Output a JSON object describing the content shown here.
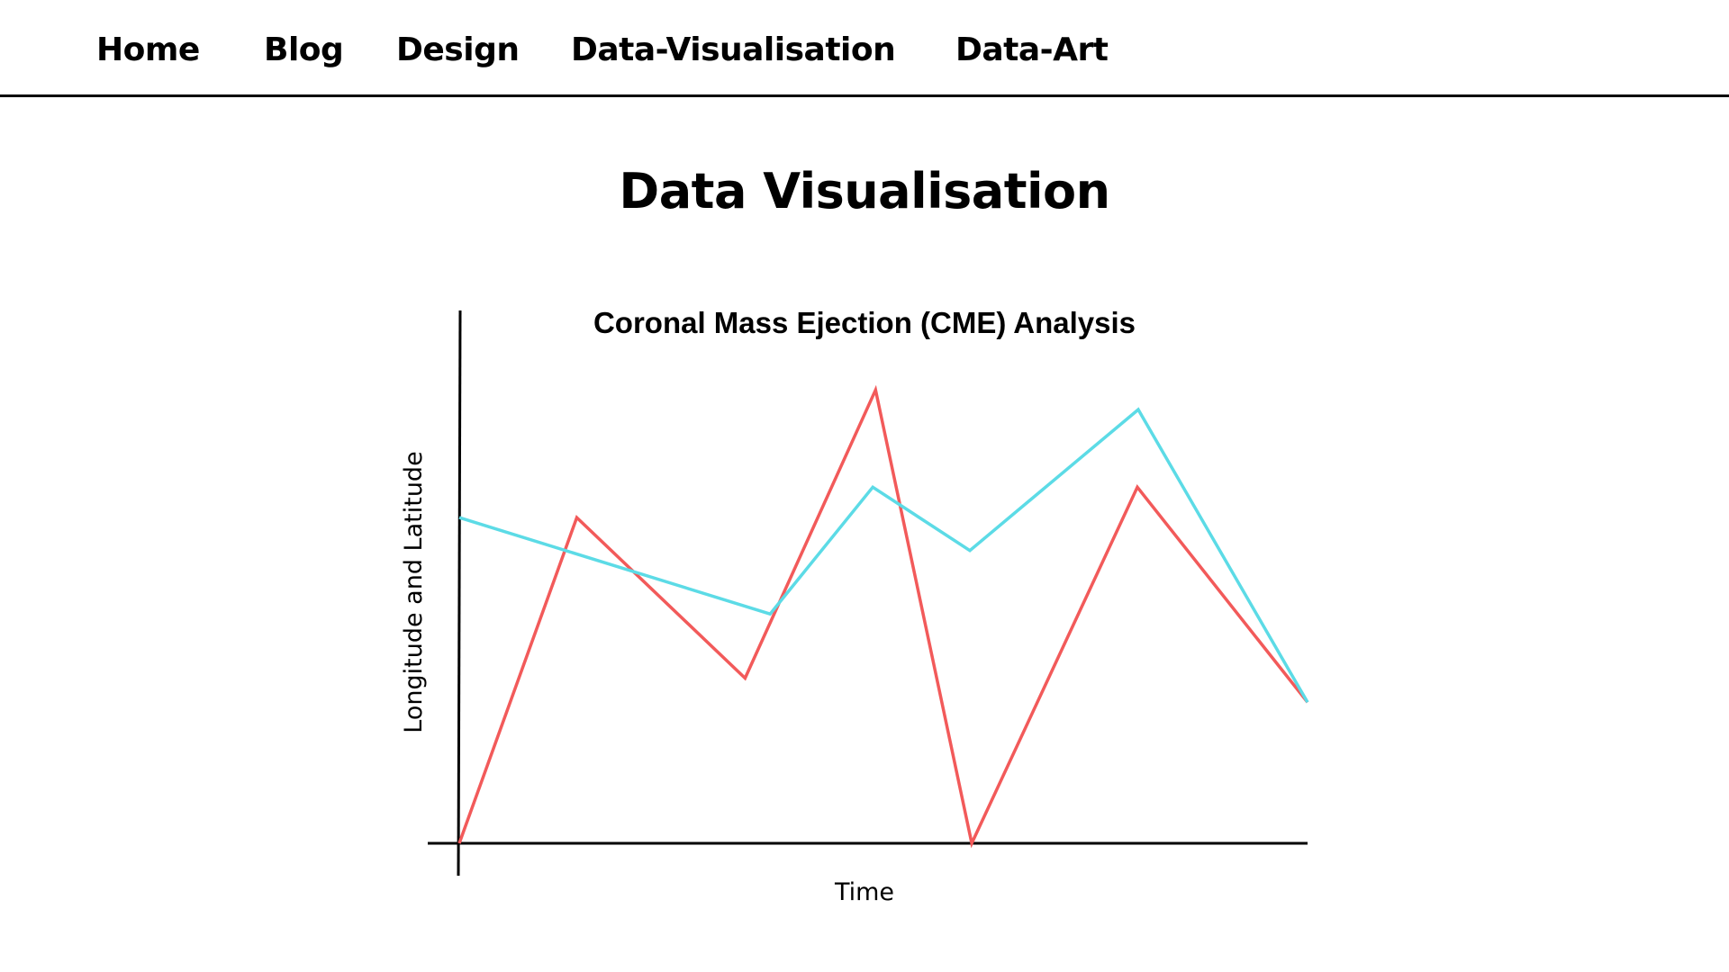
{
  "nav": {
    "items": [
      {
        "label": "Home"
      },
      {
        "label": "Blog"
      },
      {
        "label": "Design"
      },
      {
        "label": "Data-Visualisation"
      },
      {
        "label": "Data-Art"
      }
    ]
  },
  "page": {
    "title": "Data Visualisation"
  },
  "chart_data": {
    "type": "line",
    "title": "Coronal Mass Ejection (CME) Analysis",
    "xlabel": "Time",
    "ylabel": "Longitude and Latitude",
    "xlim": [
      0,
      9.17
    ],
    "ylim": [
      0,
      5.97
    ],
    "grid": false,
    "legend": "none",
    "series": [
      {
        "color": "#f25a5a",
        "x": [
          0,
          1.27,
          3.09,
          4.5,
          5.54,
          7.33,
          9.17
        ],
        "y": [
          0,
          3.65,
          1.85,
          5.08,
          0,
          3.99,
          1.58
        ]
      },
      {
        "color": "#5cdbe6",
        "x": [
          0,
          3.36,
          4.47,
          5.52,
          7.34,
          9.17
        ],
        "y": [
          3.65,
          2.57,
          3.99,
          3.28,
          4.86,
          1.58
        ]
      }
    ]
  }
}
